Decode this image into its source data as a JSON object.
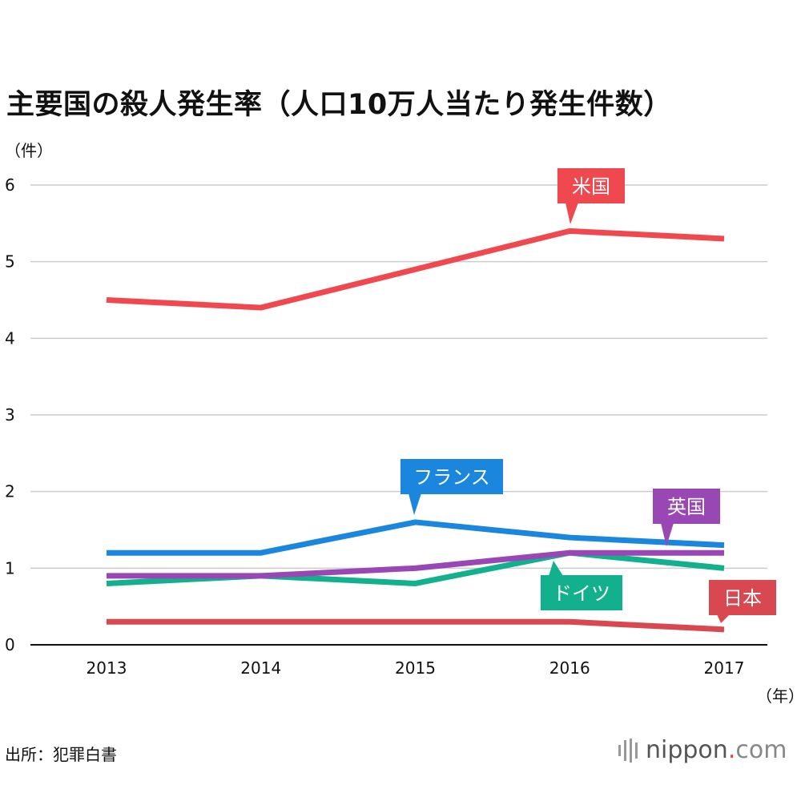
{
  "title": "主要国の殺人発生率（人口10万人当たり発生件数）",
  "y_unit": "（件）",
  "x_unit": "（年）",
  "source": "出所：犯罪白書",
  "logo": {
    "part1": "nippon",
    "dot": ".",
    "part2": "com"
  },
  "chart_data": {
    "type": "line",
    "title": "主要国の殺人発生率（人口10万人当たり発生件数）",
    "ylabel": "（件）",
    "xlabel": "（年）",
    "categories": [
      "2013",
      "2014",
      "2015",
      "2016",
      "2017"
    ],
    "ylim": [
      0,
      6
    ],
    "yticks": [
      "0",
      "1",
      "2",
      "3",
      "4",
      "5",
      "6"
    ],
    "grid": true,
    "series": [
      {
        "name": "米国",
        "values": [
          4.5,
          4.4,
          4.9,
          5.4,
          5.3
        ],
        "color": "#f0484f"
      },
      {
        "name": "フランス",
        "values": [
          1.2,
          1.2,
          1.6,
          1.4,
          1.3
        ],
        "color": "#1a86dd"
      },
      {
        "name": "英国",
        "values": [
          0.9,
          0.9,
          1.0,
          1.2,
          1.2
        ],
        "color": "#9a47b6"
      },
      {
        "name": "ドイツ",
        "values": [
          0.8,
          0.9,
          0.8,
          1.2,
          1.0
        ],
        "color": "#12b08c"
      },
      {
        "name": "日本",
        "values": [
          0.3,
          0.3,
          0.3,
          0.3,
          0.2
        ],
        "color": "#d94850"
      }
    ]
  }
}
